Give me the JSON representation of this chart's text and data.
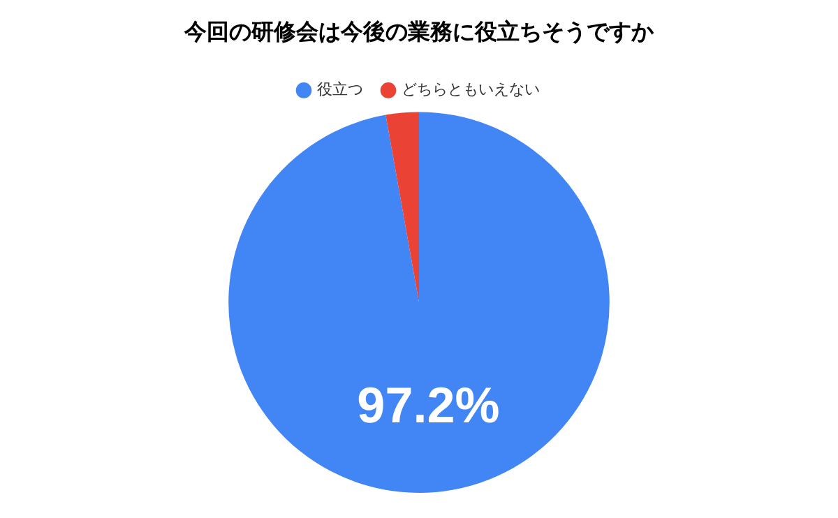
{
  "chart_data": {
    "type": "pie",
    "title": "今回の研修会は今後の業務に役立ちそうですか",
    "categories": [
      "役立つ",
      "どちらともいえない"
    ],
    "values": [
      97.2,
      2.8
    ],
    "colors": [
      "#4285f4",
      "#ea4335"
    ],
    "value_labels": [
      "97.2%",
      null
    ],
    "legend": "top"
  }
}
